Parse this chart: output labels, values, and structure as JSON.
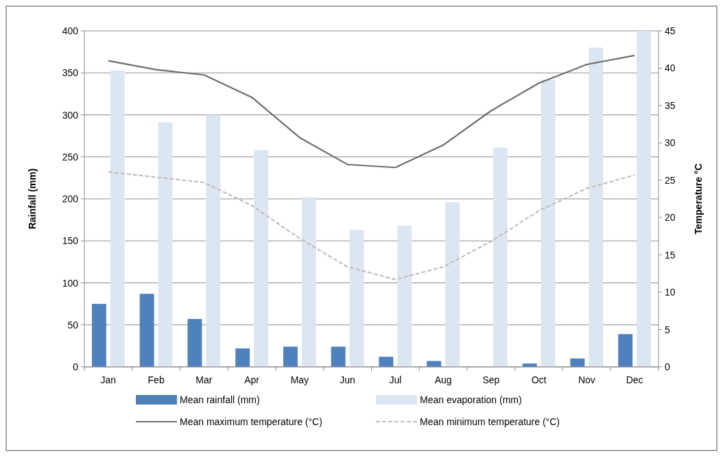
{
  "chart_data": {
    "type": "bar",
    "categories": [
      "Jan",
      "Feb",
      "Mar",
      "Apr",
      "May",
      "Jun",
      "Jul",
      "Aug",
      "Sep",
      "Oct",
      "Nov",
      "Dec"
    ],
    "ylabel": "Rainfall (mm)",
    "y2label": "Temperature °C",
    "ylim": [
      0,
      400
    ],
    "yticks": [
      0,
      50,
      100,
      150,
      200,
      250,
      300,
      350,
      400
    ],
    "y2lim": [
      0,
      45
    ],
    "y2ticks": [
      0,
      5,
      10,
      15,
      20,
      25,
      30,
      35,
      40,
      45
    ],
    "grid": "y",
    "legend": "bottom",
    "series": [
      {
        "name": "Mean rainfall (mm)",
        "color": "#4f81bd",
        "values": [
          75,
          87,
          57,
          22,
          24,
          24,
          12,
          7,
          0,
          4,
          10,
          39
        ]
      },
      {
        "name": "Mean evaporation (mm)",
        "color": "#dce6f2",
        "values": [
          353,
          291,
          300,
          258,
          202,
          163,
          168,
          196,
          261,
          342,
          380,
          400
        ]
      },
      {
        "name": "Mean maximum temperature (°C)",
        "type": "line",
        "axis": "y2",
        "color": "#6d6d6d",
        "line_style": "solid",
        "values": [
          41.0,
          39.8,
          39.1,
          36.1,
          30.7,
          27.1,
          26.7,
          29.7,
          34.3,
          38.0,
          40.5,
          41.7
        ]
      },
      {
        "name": "Mean minimum temperature (°C)",
        "type": "line",
        "axis": "y2",
        "color": "#bfbfbf",
        "line_style": "dashed",
        "values": [
          26.1,
          25.4,
          24.7,
          21.6,
          17.2,
          13.4,
          11.7,
          13.4,
          16.8,
          20.9,
          23.9,
          25.7
        ]
      }
    ]
  }
}
